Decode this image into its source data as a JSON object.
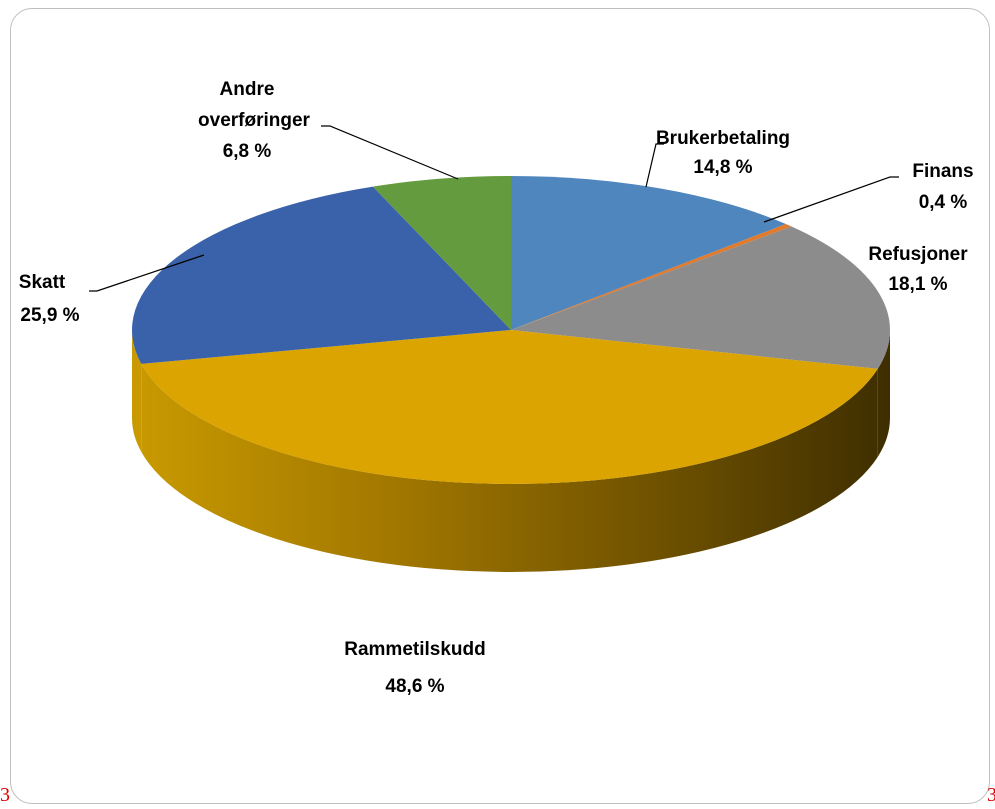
{
  "chart_data": {
    "type": "pie",
    "title": "",
    "unit": "%",
    "slices": [
      {
        "label": "Brukerbetaling",
        "value": 14.8,
        "display": "14,8 %",
        "color": "#4f86bd"
      },
      {
        "label": "Finans",
        "value": 0.4,
        "display": "0,4 %",
        "color": "#e07a2c"
      },
      {
        "label": "Refusjoner",
        "value": 18.1,
        "display": "18,1 %",
        "color": "#8c8c8c"
      },
      {
        "label": "Rammetilskudd",
        "value": 48.6,
        "display": "48,6 %",
        "color": "#dba400"
      },
      {
        "label": "Skatt",
        "value": 25.9,
        "display": "25,9 %",
        "color": "#3a62aa"
      },
      {
        "label": "Andre overføringer",
        "value": 6.8,
        "display": "6,8 %",
        "color": "#649b3e"
      }
    ],
    "style": "3d"
  },
  "corner_marks": {
    "left": "3",
    "right": "3"
  }
}
